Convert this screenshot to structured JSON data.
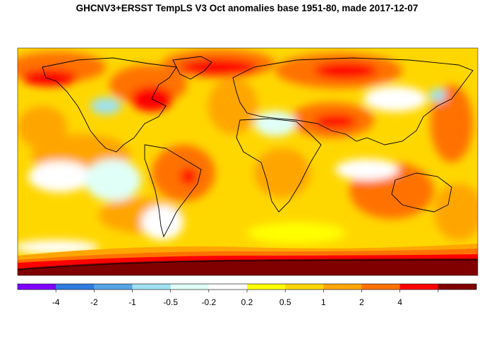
{
  "title": "GHCNV3+ERSST TempLS V3 Oct anomalies base 1951-80, made 2017-12-07",
  "legend": {
    "colors": [
      "#7f00ff",
      "#2e7be0",
      "#56a5e6",
      "#9fe1f1",
      "#e0fff7",
      "#ffffff",
      "#ffff00",
      "#ffd700",
      "#ffa500",
      "#ff7200",
      "#ff0000",
      "#800000"
    ],
    "labels": [
      "-4",
      "-2",
      "-1",
      "-0.5",
      "-0.2",
      "0.2",
      "0.5",
      "1",
      "2",
      "4"
    ]
  },
  "map": {
    "projection": "equirectangular, longitude -180 to 180",
    "ocean_base_color": "#ffd700",
    "land_outline_color": "#000000"
  }
}
